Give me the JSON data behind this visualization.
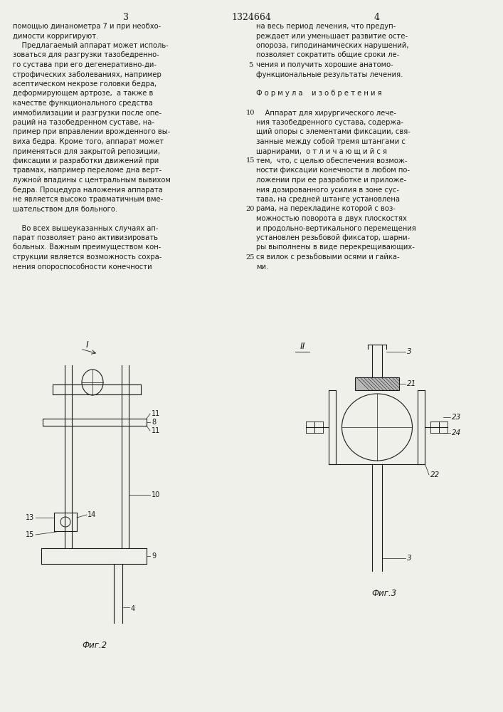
{
  "page_number_left": "3",
  "page_number_center": "1324664",
  "page_number_right": "4",
  "background_color": "#f0f0eb",
  "text_color": "#1a1a1a",
  "left_column_lines": [
    "помощью динанометра 7 и при необхо-",
    "димости корригируют.",
    "    Предлагаемый аппарат может исполь-",
    "зоваться для разгрузки тазобедренно-",
    "го сустава при его дегенеративно-ди-",
    "строфических заболеваниях, например",
    "асептическом некрозе головки бедра,",
    "деформирующем артрозе,  а также в",
    "качестве функционального средства",
    "иммобилизации и разгрузки после опе-",
    "раций на тазобедренном суставе, на-",
    "пример при вправлении врожденного вы-",
    "виха бедра. Кроме того, аппарат может",
    "применяться для закрытой репозиции,",
    "фиксации и разработки движений при",
    "травмах, например переломе дна верт-",
    "лужной впадины с центральным вывихом",
    "бедра. Процедура наложения аппарата",
    "не является высоко травматичным вме-",
    "шательством для больного.",
    "",
    "    Во всех вышеуказанных случаях ап-",
    "парат позволяет рано активизировать",
    "больных. Важным преимуществом кон-",
    "струкции является возможность сохра-",
    "нения опороспособности конечности"
  ],
  "right_column_lines": [
    "на весь период лечения, что предуп-",
    "реждает или уменьшает развитие осте-",
    "опороза, гиподинамических нарушений,",
    "позволяет сократить общие сроки ле-",
    "чения и получить хорошие анатомо-",
    "функциональные результаты лечения.",
    "",
    "Ф о р м у л а    и з о б р е т е н и я",
    "",
    "    Аппарат для хирургического лече-",
    "ния тазобедренного сустава, содержа-",
    "щий опоры с элементами фиксации, свя-",
    "занные между собой тремя штангами с",
    "шарнирами,  о т л и ч а ю щ и й с я",
    "тем,  что, с целью обеспечения возмож-",
    "ности фиксации конечности в любом по-",
    "ложении при ее разработке и приложе-",
    "ния дозированного усилия в зоне сус-",
    "тава, на средней штанге установлена",
    "рама, на перекладине которой с воз-",
    "можностью поворота в двух плоскостях",
    "и продольно-вертикального перемещения",
    "установлен резьбовой фиксатор, шарни-",
    "ры выполнены в виде перекрещивающих-",
    "ся вилок с резьбовыми осями и гайка-",
    "ми."
  ],
  "line_numbers": [
    5,
    10,
    15,
    20,
    25
  ],
  "fig2_label": "Фиг.2",
  "fig3_label": "Фиг.3"
}
